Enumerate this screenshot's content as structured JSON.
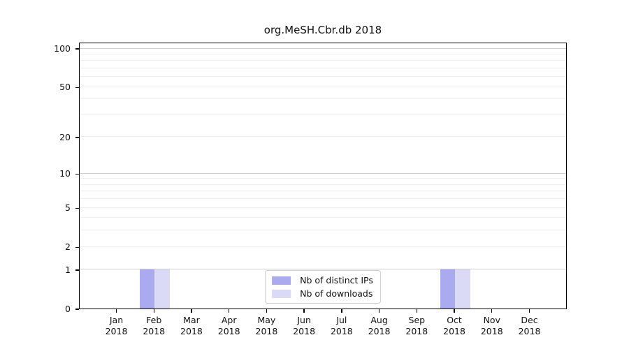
{
  "colors": {
    "bar_distinct_ips": "#aaaaf0",
    "bar_downloads": "#dadaf7",
    "grid_major": "#cfcfcf",
    "grid_minor": "#efefef",
    "axis": "#000000",
    "legend_border": "#cccccc",
    "text": "#111111"
  },
  "chart_data": {
    "type": "bar",
    "title": "org.MeSH.Cbr.db 2018",
    "year": "2018",
    "months": [
      "Jan",
      "Feb",
      "Mar",
      "Apr",
      "May",
      "Jun",
      "Jul",
      "Aug",
      "Sep",
      "Oct",
      "Nov",
      "Dec"
    ],
    "categories": [
      "Jan 2018",
      "Feb 2018",
      "Mar 2018",
      "Apr 2018",
      "May 2018",
      "Jun 2018",
      "Jul 2018",
      "Aug 2018",
      "Sep 2018",
      "Oct 2018",
      "Nov 2018",
      "Dec 2018"
    ],
    "series": [
      {
        "name": "Nb of distinct IPs",
        "values": [
          0,
          1,
          0,
          0,
          0,
          0,
          0,
          0,
          0,
          1,
          0,
          0
        ]
      },
      {
        "name": "Nb of downloads",
        "values": [
          0,
          1,
          0,
          0,
          0,
          0,
          0,
          0,
          0,
          1,
          0,
          0
        ]
      }
    ],
    "yscale": "log10(1+y)",
    "ylim": [
      0,
      100
    ],
    "yticks": [
      0,
      1,
      2,
      5,
      10,
      20,
      50,
      100
    ],
    "major_gridlines": [
      1,
      10,
      100
    ],
    "minor_gridlines": [
      2,
      3,
      4,
      5,
      6,
      7,
      8,
      9,
      20,
      30,
      40,
      50,
      60,
      70,
      80,
      90
    ],
    "grid": "horizontal",
    "legend": [
      "Nb of distinct IPs",
      "Nb of downloads"
    ],
    "legend_position": "bottom-center"
  }
}
